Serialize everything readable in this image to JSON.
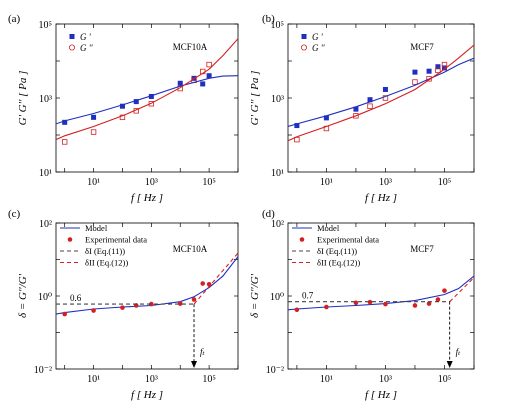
{
  "colors": {
    "blue": "#1f2fbf",
    "red": "#d42020",
    "dashed": "#444444"
  },
  "chart_data": [
    {
      "id": "a",
      "type": "scatter",
      "panel_label": "(a)",
      "annotation": "MCF10A",
      "ylabel": "G' G'' [ Pa ]",
      "xlabel": "f [ Hz ]",
      "xscale": "log",
      "yscale": "log",
      "xlim": [
        0.5,
        1000000
      ],
      "ylim": [
        10,
        100000
      ],
      "xticks": [
        {
          "v": 10,
          "label": "10¹"
        },
        {
          "v": 1000,
          "label": "10³"
        },
        {
          "v": 100000,
          "label": "10⁵"
        }
      ],
      "yticks": [
        {
          "v": 10,
          "label": "10¹"
        },
        {
          "v": 1000,
          "label": "10³"
        },
        {
          "v": 100000,
          "label": "10⁵"
        }
      ],
      "legend": {
        "position": "top-left",
        "entries": [
          {
            "label": "G '",
            "marker": "filled-square",
            "color": "blue"
          },
          {
            "label": "G ''",
            "marker": "open-circle",
            "color": "red"
          }
        ]
      },
      "series": [
        {
          "name": "G '",
          "kind": "points",
          "marker": "filled-square",
          "color": "blue",
          "x": [
            1,
            10,
            100,
            300,
            1000,
            10000,
            30000,
            60000,
            100000
          ],
          "y": [
            220,
            300,
            600,
            800,
            1100,
            2500,
            3400,
            2400,
            4000
          ]
        },
        {
          "name": "G ''",
          "kind": "points",
          "marker": "open-square",
          "color": "red",
          "x": [
            1,
            10,
            100,
            300,
            1000,
            10000,
            30000,
            60000,
            100000
          ],
          "y": [
            65,
            120,
            300,
            450,
            700,
            1800,
            3000,
            5200,
            8000
          ]
        },
        {
          "kind": "line",
          "color": "blue",
          "x": [
            0.5,
            1,
            10,
            100,
            1000,
            10000,
            100000,
            300000,
            1000000
          ],
          "y": [
            200,
            240,
            380,
            650,
            1150,
            2100,
            3400,
            3900,
            4000
          ]
        },
        {
          "kind": "line",
          "color": "red",
          "x": [
            0.5,
            1,
            10,
            100,
            1000,
            10000,
            100000,
            300000,
            1000000
          ],
          "y": [
            75,
            95,
            170,
            330,
            720,
            1900,
            6000,
            14000,
            40000
          ]
        }
      ]
    },
    {
      "id": "b",
      "type": "scatter",
      "panel_label": "(b)",
      "annotation": "MCF7",
      "ylabel": "G' G'' [ Pa ]",
      "xlabel": "f [ Hz ]",
      "xscale": "log",
      "yscale": "log",
      "xlim": [
        0.5,
        1000000
      ],
      "ylim": [
        10,
        100000
      ],
      "xticks": [
        {
          "v": 10,
          "label": "10¹"
        },
        {
          "v": 1000,
          "label": "10³"
        },
        {
          "v": 100000,
          "label": "10⁵"
        }
      ],
      "yticks": [
        {
          "v": 10,
          "label": "10¹"
        },
        {
          "v": 1000,
          "label": "10³"
        },
        {
          "v": 100000,
          "label": "10⁵"
        }
      ],
      "legend": {
        "position": "top-left",
        "entries": [
          {
            "label": "G '",
            "marker": "filled-square",
            "color": "blue"
          },
          {
            "label": "G ''",
            "marker": "open-circle",
            "color": "red"
          }
        ]
      },
      "series": [
        {
          "name": "G '",
          "kind": "points",
          "marker": "filled-square",
          "color": "blue",
          "x": [
            1,
            10,
            100,
            300,
            1000,
            10000,
            30000,
            60000,
            100000
          ],
          "y": [
            180,
            290,
            500,
            900,
            1700,
            5000,
            5300,
            7000,
            6500
          ]
        },
        {
          "name": "G ''",
          "kind": "points",
          "marker": "open-square",
          "color": "red",
          "x": [
            1,
            10,
            100,
            300,
            1000,
            10000,
            30000,
            60000,
            100000
          ],
          "y": [
            75,
            150,
            330,
            600,
            1000,
            2700,
            3300,
            5600,
            8000
          ]
        },
        {
          "kind": "line",
          "color": "blue",
          "x": [
            0.5,
            1,
            10,
            100,
            1000,
            10000,
            100000,
            300000,
            1000000
          ],
          "y": [
            170,
            200,
            330,
            580,
            1100,
            2200,
            5000,
            8000,
            12000
          ]
        },
        {
          "kind": "line",
          "color": "red",
          "x": [
            0.5,
            1,
            10,
            100,
            1000,
            10000,
            100000,
            300000,
            1000000
          ],
          "y": [
            70,
            90,
            170,
            330,
            700,
            1700,
            6000,
            12000,
            27000
          ]
        }
      ]
    },
    {
      "id": "c",
      "type": "scatter",
      "panel_label": "(c)",
      "annotation": "MCF10A",
      "ylabel": "δ = G''/G'",
      "xlabel": "f [ Hz ]",
      "xscale": "log",
      "yscale": "log",
      "xlim": [
        0.5,
        1000000
      ],
      "ylim": [
        0.01,
        100
      ],
      "xticks": [
        {
          "v": 10,
          "label": "10¹"
        },
        {
          "v": 1000,
          "label": "10³"
        },
        {
          "v": 100000,
          "label": "10⁵"
        }
      ],
      "yticks": [
        {
          "v": 0.01,
          "label": "10⁻²"
        },
        {
          "v": 1,
          "label": "10⁰"
        },
        {
          "v": 100,
          "label": "10²"
        }
      ],
      "legend": {
        "position": "top-left",
        "entries": [
          {
            "label": "Model",
            "marker": "line",
            "color": "blue"
          },
          {
            "label": "Experimental data",
            "marker": "filled-circle",
            "color": "red"
          },
          {
            "label": "δI (Eq.(11))",
            "marker": "dash",
            "color": "dashed"
          },
          {
            "label": "δII (Eq.(12))",
            "marker": "dash",
            "color": "red"
          }
        ]
      },
      "reference_value_label": "0.6",
      "reference_value": 0.6,
      "crossover_label": "fₜ",
      "crossover_f": 30000,
      "series": [
        {
          "name": "Model",
          "kind": "line",
          "color": "blue",
          "x": [
            0.5,
            1,
            10,
            100,
            1000,
            10000,
            30000,
            100000,
            300000,
            1000000
          ],
          "y": [
            0.32,
            0.35,
            0.44,
            0.5,
            0.55,
            0.7,
            0.95,
            1.7,
            3.5,
            12
          ]
        },
        {
          "name": "Experimental data",
          "kind": "points",
          "marker": "filled-circle",
          "color": "red",
          "x": [
            1,
            10,
            100,
            300,
            1000,
            10000,
            30000,
            60000,
            100000
          ],
          "y": [
            0.32,
            0.4,
            0.48,
            0.55,
            0.6,
            0.62,
            0.8,
            2.2,
            2.1
          ]
        },
        {
          "name": "δI (Eq.(11))",
          "kind": "dashed",
          "color": "dashed",
          "x": [
            0.5,
            30000
          ],
          "y": [
            0.6,
            0.6
          ]
        },
        {
          "name": "δII (Eq.(12))",
          "kind": "dashed",
          "color": "red",
          "x": [
            30000,
            1000000
          ],
          "y": [
            0.6,
            15
          ]
        }
      ]
    },
    {
      "id": "d",
      "type": "scatter",
      "panel_label": "(d)",
      "annotation": "MCF7",
      "ylabel": "δ = G''/G'",
      "xlabel": "f [ Hz ]",
      "xscale": "log",
      "yscale": "log",
      "xlim": [
        0.5,
        1000000
      ],
      "ylim": [
        0.01,
        100
      ],
      "xticks": [
        {
          "v": 10,
          "label": "10¹"
        },
        {
          "v": 1000,
          "label": "10³"
        },
        {
          "v": 100000,
          "label": "10⁵"
        }
      ],
      "yticks": [
        {
          "v": 0.01,
          "label": "10⁻²"
        },
        {
          "v": 1,
          "label": "10⁰"
        },
        {
          "v": 100,
          "label": "10²"
        }
      ],
      "legend": {
        "position": "top-left",
        "entries": [
          {
            "label": "Model",
            "marker": "line",
            "color": "blue"
          },
          {
            "label": "Experimental data",
            "marker": "filled-circle",
            "color": "red"
          },
          {
            "label": "δI (Eq.(11))",
            "marker": "dash",
            "color": "dashed"
          },
          {
            "label": "δII (Eq.(12))",
            "marker": "dash",
            "color": "red"
          }
        ]
      },
      "reference_value_label": "0.7",
      "reference_value": 0.7,
      "crossover_label": "fₜ",
      "crossover_f": 150000,
      "series": [
        {
          "name": "Model",
          "kind": "line",
          "color": "blue",
          "x": [
            0.5,
            1,
            10,
            100,
            1000,
            10000,
            100000,
            300000,
            1000000
          ],
          "y": [
            0.42,
            0.44,
            0.5,
            0.55,
            0.62,
            0.75,
            1.1,
            1.6,
            3.5
          ]
        },
        {
          "name": "Experimental data",
          "kind": "points",
          "marker": "filled-circle",
          "color": "red",
          "x": [
            1,
            10,
            100,
            300,
            1000,
            10000,
            30000,
            60000,
            100000
          ],
          "y": [
            0.42,
            0.5,
            0.65,
            0.68,
            0.6,
            0.55,
            0.62,
            0.8,
            1.4
          ]
        },
        {
          "name": "δI (Eq.(11))",
          "kind": "dashed",
          "color": "dashed",
          "x": [
            0.5,
            150000
          ],
          "y": [
            0.7,
            0.7
          ]
        },
        {
          "name": "δII (Eq.(12))",
          "kind": "dashed",
          "color": "red",
          "x": [
            150000,
            1000000
          ],
          "y": [
            0.7,
            3.2
          ]
        }
      ]
    }
  ]
}
